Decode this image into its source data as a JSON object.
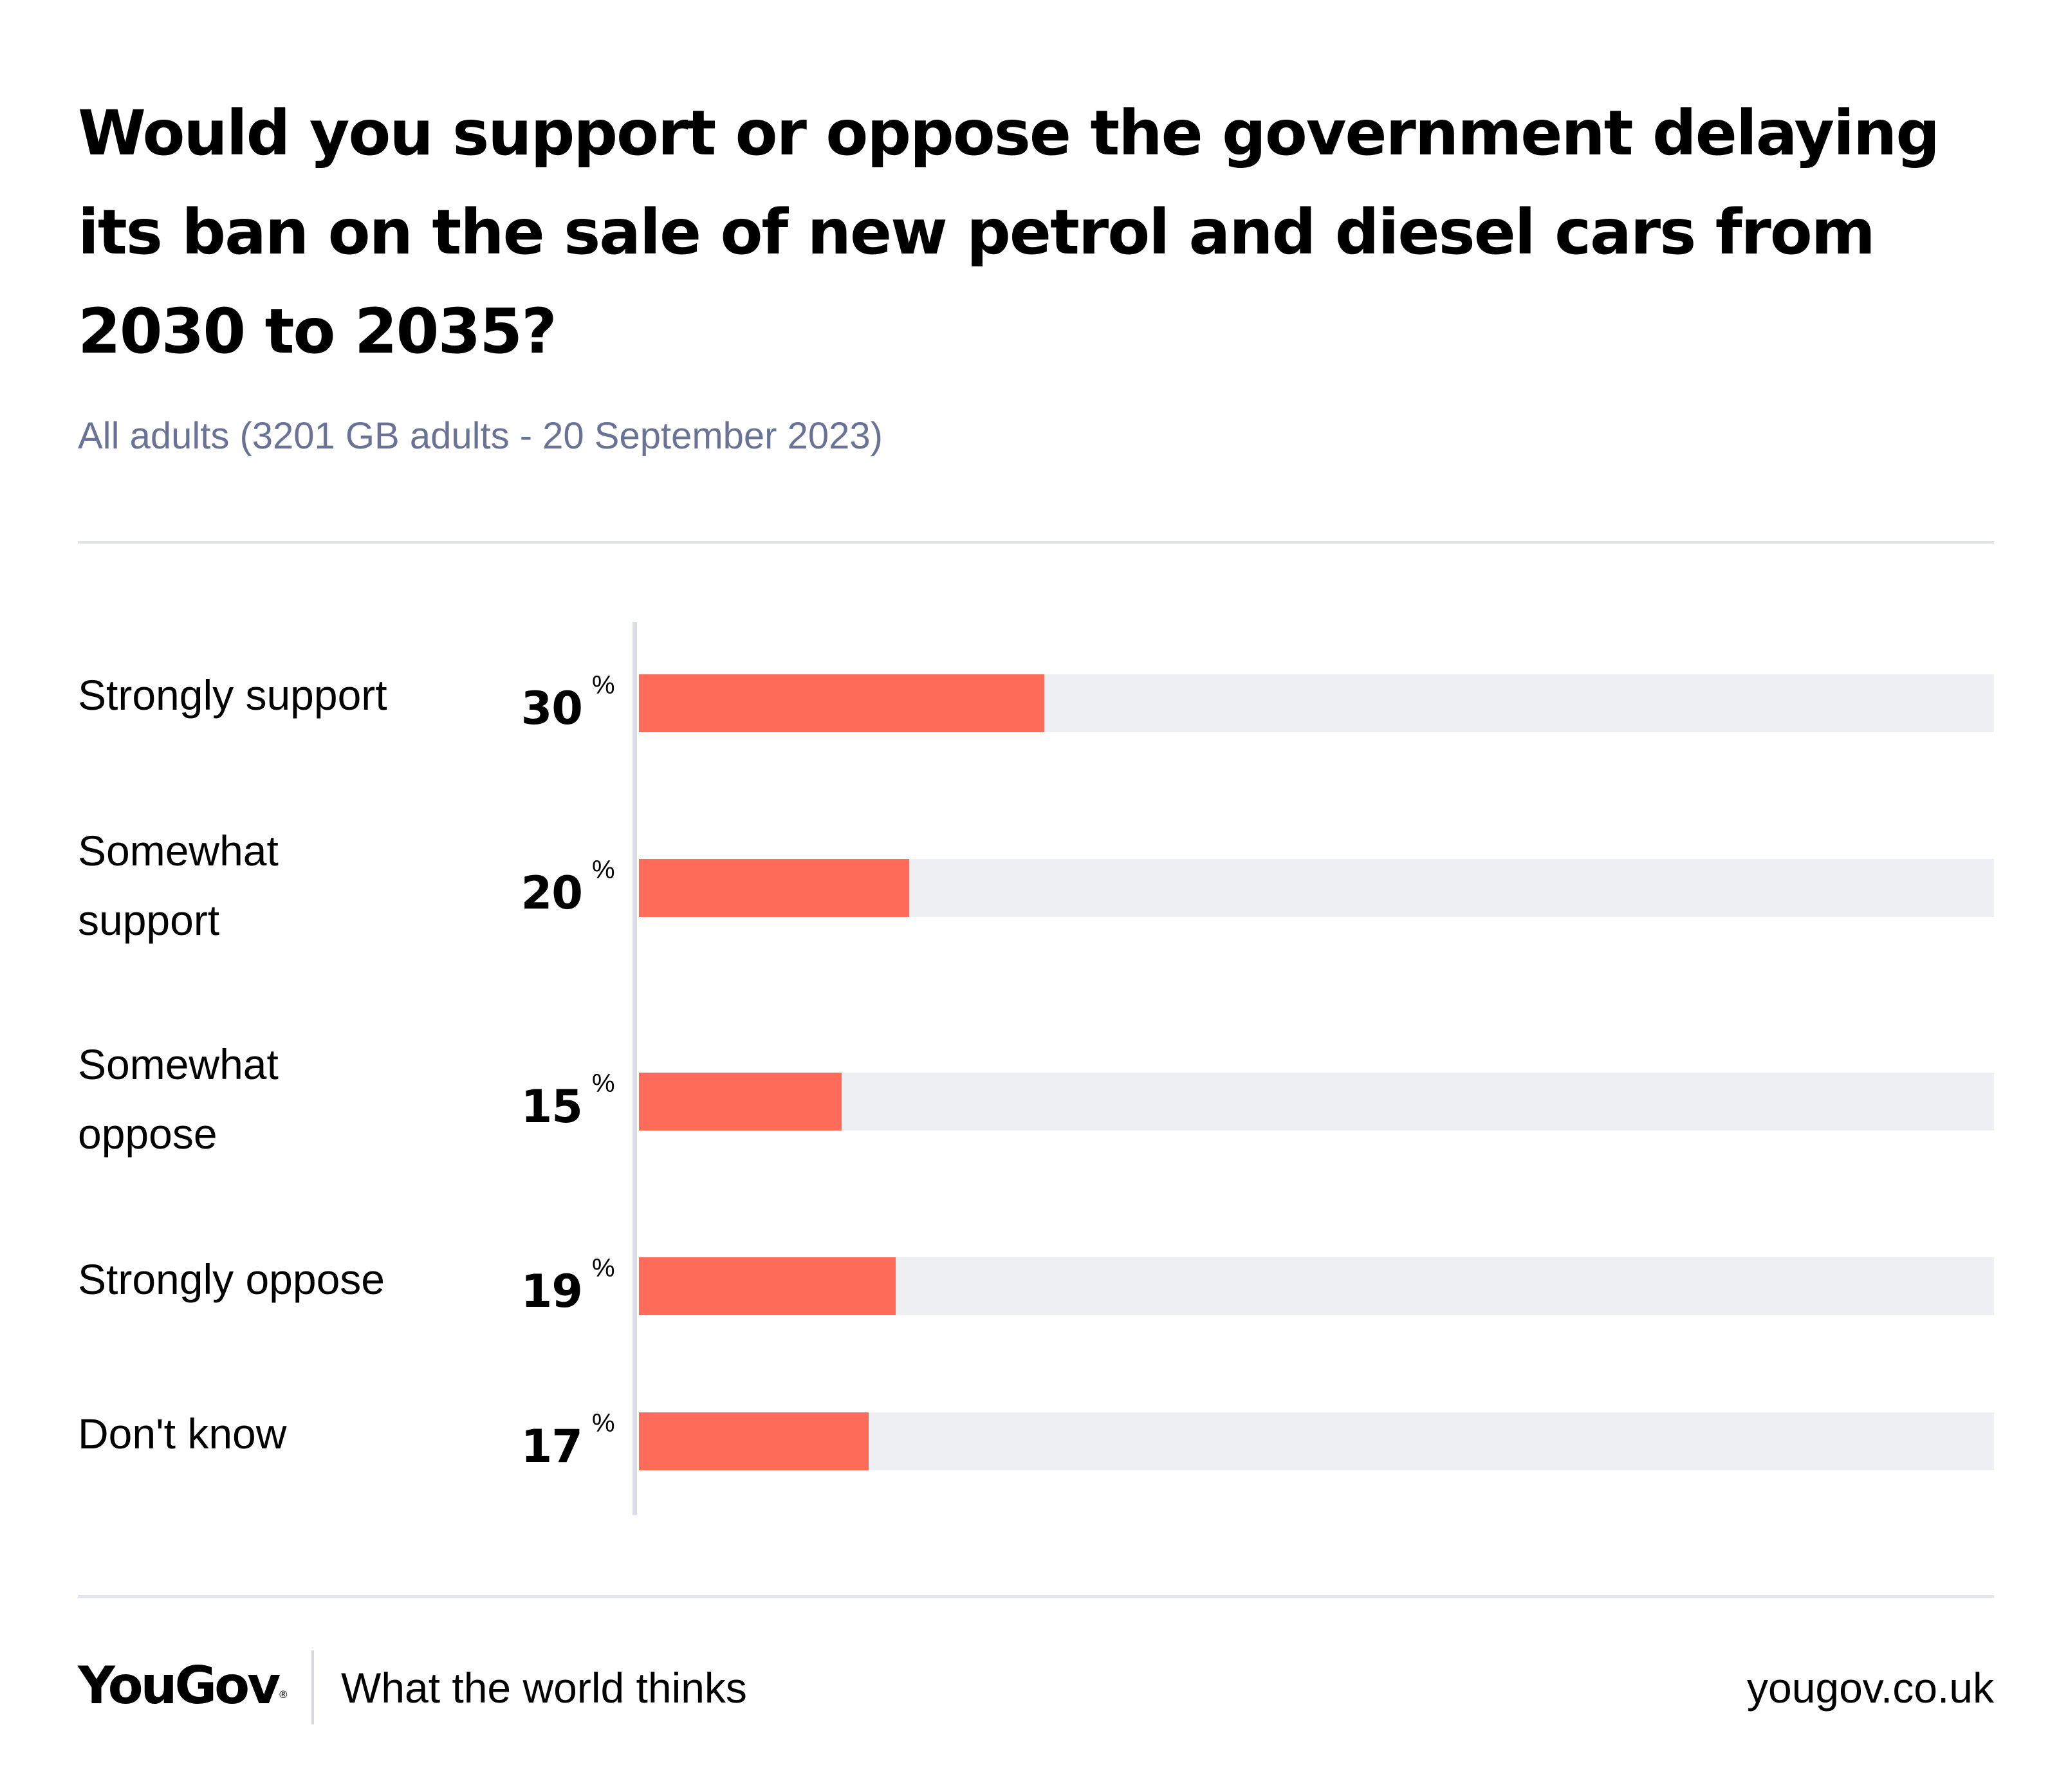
{
  "title": "Would you support or oppose the government delaying its ban on the sale of new petrol and diesel cars from 2030 to 2035?",
  "subtitle": "All adults (3201 GB adults - 20 September 2023)",
  "colors": {
    "bar": "#fe6b59",
    "track": "#eeeff3",
    "subtitle": "#6a7396",
    "rule": "#e3e4ea"
  },
  "chart_data": {
    "type": "bar",
    "orientation": "horizontal",
    "categories": [
      "Strongly support",
      "Somewhat support",
      "Somewhat oppose",
      "Strongly oppose",
      "Don't know"
    ],
    "values": [
      30,
      20,
      15,
      19,
      17
    ],
    "unit": "%",
    "xlim": [
      0,
      100
    ],
    "grid": false,
    "legend": "none"
  },
  "footer": {
    "logo": "YouGov",
    "logo_mark": "®",
    "tagline": "What the world thinks",
    "site": "yougov.co.uk"
  }
}
